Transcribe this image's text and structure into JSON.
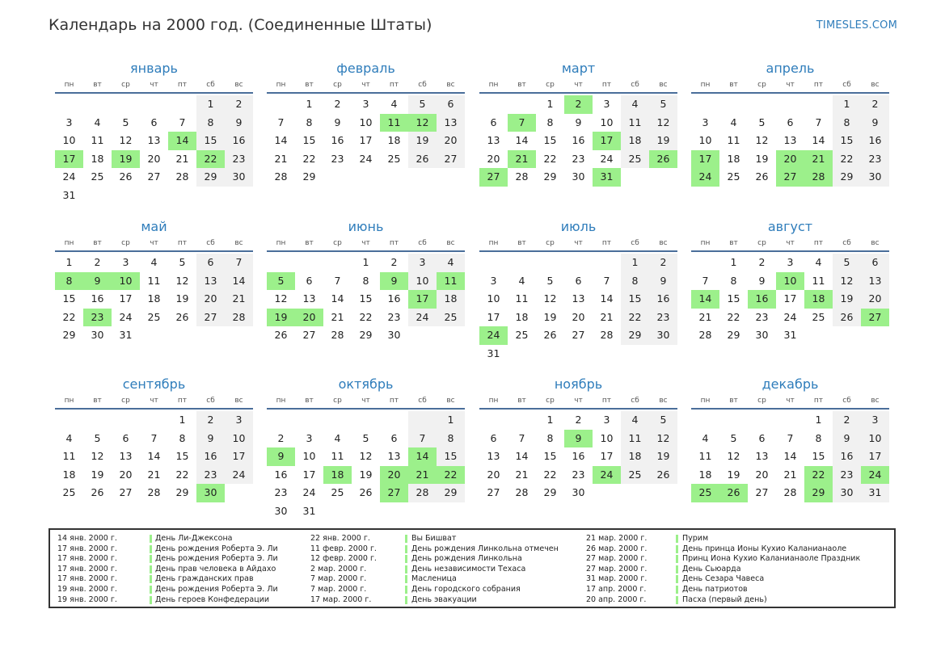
{
  "header": {
    "title": "Календарь на 2000 год. (Соединенные Штаты)",
    "site": "TIMESLES.COM"
  },
  "weekdays": [
    "пн",
    "вт",
    "ср",
    "чт",
    "пт",
    "сб",
    "вс"
  ],
  "colors": {
    "accent": "#2f7dbb",
    "holiday": "#9cf08b",
    "weekend": "#f1f1f1",
    "rule": "#4a6e9a"
  },
  "months": [
    {
      "name": "январь",
      "offset": 5,
      "days": 31,
      "holidays": [
        14,
        17,
        19,
        22
      ]
    },
    {
      "name": "февраль",
      "offset": 1,
      "days": 29,
      "holidays": [
        11,
        12
      ]
    },
    {
      "name": "март",
      "offset": 2,
      "days": 31,
      "holidays": [
        2,
        7,
        17,
        21,
        26,
        27,
        31
      ]
    },
    {
      "name": "апрель",
      "offset": 5,
      "days": 30,
      "holidays": [
        17,
        20,
        21,
        24,
        27,
        28
      ]
    },
    {
      "name": "май",
      "offset": 0,
      "days": 31,
      "holidays": [
        8,
        9,
        10,
        23
      ]
    },
    {
      "name": "июнь",
      "offset": 3,
      "days": 30,
      "holidays": [
        5,
        9,
        11,
        17,
        19,
        20
      ]
    },
    {
      "name": "июль",
      "offset": 5,
      "days": 31,
      "holidays": [
        24
      ]
    },
    {
      "name": "август",
      "offset": 1,
      "days": 31,
      "holidays": [
        10,
        14,
        16,
        18,
        27
      ]
    },
    {
      "name": "сентябрь",
      "offset": 4,
      "days": 30,
      "holidays": [
        30
      ]
    },
    {
      "name": "октябрь",
      "offset": 6,
      "days": 31,
      "holidays": [
        9,
        14,
        18,
        20,
        21,
        22,
        27
      ]
    },
    {
      "name": "ноябрь",
      "offset": 2,
      "days": 30,
      "holidays": [
        9,
        24
      ]
    },
    {
      "name": "декабрь",
      "offset": 4,
      "days": 31,
      "holidays": [
        25,
        26,
        29,
        22,
        24
      ]
    }
  ],
  "legend": [
    [
      {
        "date": "14 янв. 2000 г.",
        "name": "День Ли-Джексона"
      },
      {
        "date": "17 янв. 2000 г.",
        "name": "День рождения Роберта Э. Ли"
      },
      {
        "date": "17 янв. 2000 г.",
        "name": "День рождения Роберта Э. Ли"
      },
      {
        "date": "17 янв. 2000 г.",
        "name": "День прав человека в Айдахо"
      },
      {
        "date": "17 янв. 2000 г.",
        "name": "День гражданских прав"
      },
      {
        "date": "19 янв. 2000 г.",
        "name": "День рождения Роберта Э. Ли"
      },
      {
        "date": "19 янв. 2000 г.",
        "name": "День героев Конфедерации"
      }
    ],
    [
      {
        "date": "22 янв. 2000 г.",
        "name": "Вы Бишват"
      },
      {
        "date": "11 февр. 2000 г.",
        "name": "День рождения Линкольна отмечен"
      },
      {
        "date": "12 февр. 2000 г.",
        "name": "День рождения Линкольна"
      },
      {
        "date": "2 мар. 2000 г.",
        "name": "День независимости Техаса"
      },
      {
        "date": "7 мар. 2000 г.",
        "name": "Масленица"
      },
      {
        "date": "7 мар. 2000 г.",
        "name": "День городского собрания"
      },
      {
        "date": "17 мар. 2000 г.",
        "name": "День эвакуации"
      }
    ],
    [
      {
        "date": "21 мар. 2000 г.",
        "name": "Пурим"
      },
      {
        "date": "26 мар. 2000 г.",
        "name": "День принца Ионы Кухио Каланианаоле"
      },
      {
        "date": "27 мар. 2000 г.",
        "name": "Принц Иона Кухио Каланианаоле Праздник"
      },
      {
        "date": "27 мар. 2000 г.",
        "name": "День Сьюарда"
      },
      {
        "date": "31 мар. 2000 г.",
        "name": "День Сезара Чавеса"
      },
      {
        "date": "17 апр. 2000 г.",
        "name": "День патриотов"
      },
      {
        "date": "20 апр. 2000 г.",
        "name": "Пасха (первый день)"
      }
    ]
  ]
}
